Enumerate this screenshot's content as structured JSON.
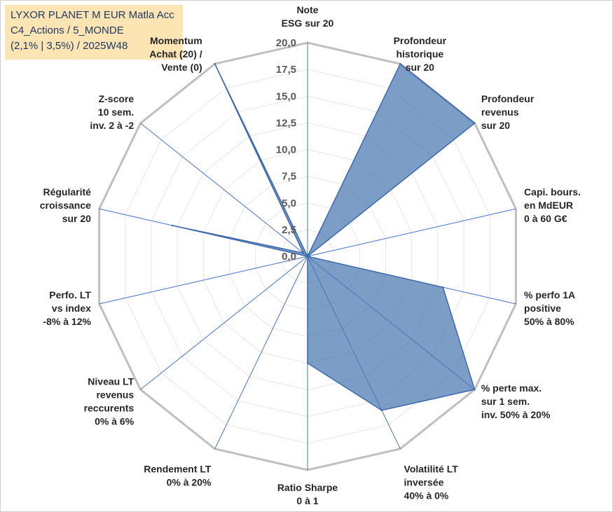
{
  "title_box": {
    "line1": "LYXOR PLANET M EUR Matla Acc",
    "line2": "C4_Actions / 5_MONDE",
    "line3": "(2,1% | 3,5%) / 2025W48"
  },
  "chart_data": {
    "type": "radar",
    "title": "LYXOR PLANET M EUR Matla Acc",
    "axes": [
      [
        "Note",
        "ESG sur 20"
      ],
      [
        "Profondeur",
        "historique",
        "sur 20"
      ],
      [
        "Profondeur",
        "revenus",
        "sur 20"
      ],
      [
        "Capi. bours.",
        "en MdEUR",
        "0 à 60 G€"
      ],
      [
        "% perfo 1A",
        "positive",
        "50% à 80%"
      ],
      [
        "% perte max.",
        "sur 1 sem.",
        "inv. 50% à 20%"
      ],
      [
        "Volatilité LT",
        "inversée",
        "40% à 0%"
      ],
      [
        "Ratio Sharpe",
        "0 à 1"
      ],
      [
        "Rendement LT",
        "0% à 20%"
      ],
      [
        "Niveau LT",
        "revenus",
        "reccurents",
        "0% à 6%"
      ],
      [
        "Perfo. LT",
        "vs index",
        "-8% à 12%"
      ],
      [
        "Régularité",
        "croissance",
        "sur 20"
      ],
      [
        "Z-score",
        "10 sem.",
        "inv. 2 à -2"
      ],
      [
        "Momentum",
        "Achat (20) /",
        "Vente (0)"
      ]
    ],
    "values": [
      0,
      20,
      20,
      0,
      13,
      20,
      16,
      10,
      0,
      0,
      0,
      13,
      0.5,
      20
    ],
    "rmin": 0,
    "rmax": 20,
    "ticks": [
      "0,0",
      "2,5",
      "5,0",
      "7,5",
      "10,0",
      "12,5",
      "15,0",
      "17,5",
      "20,0"
    ],
    "series_color": "#4a77b0",
    "grid_color": "#bfbfbf",
    "spoke_color": "#4472c4"
  }
}
